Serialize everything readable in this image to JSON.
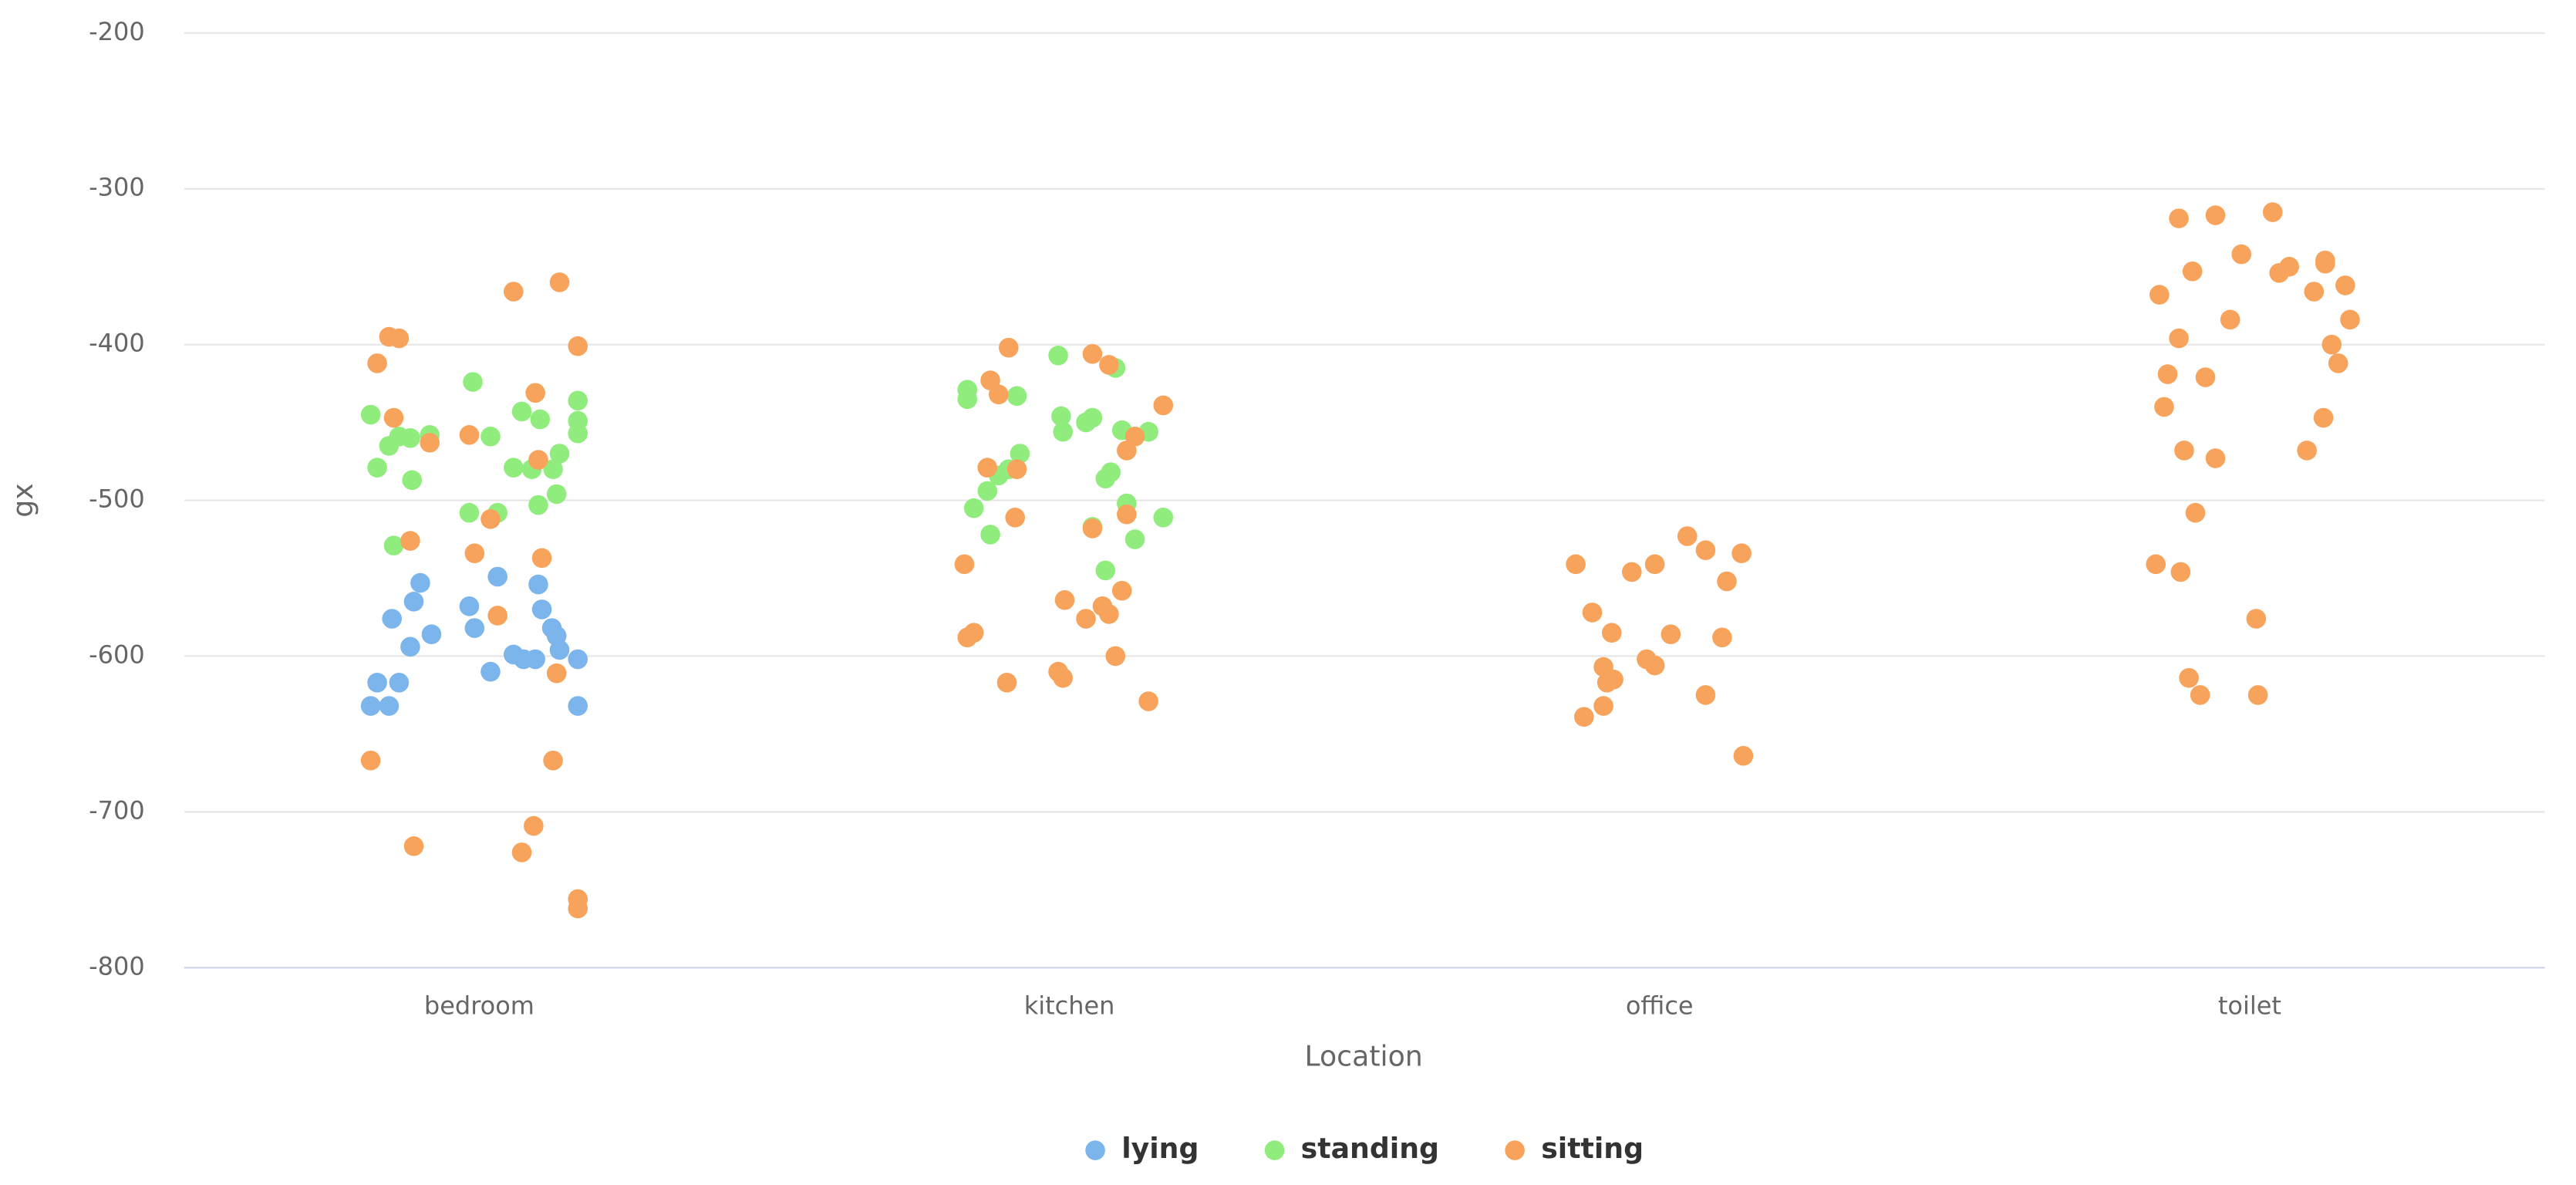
{
  "chart_data": {
    "type": "scatter",
    "x_label": "Location",
    "y_label": "gx",
    "categories": [
      "bedroom",
      "kitchen",
      "office",
      "toilet"
    ],
    "xlim": [
      -0.5,
      3.5
    ],
    "ylim": [
      -800,
      -200
    ],
    "yticks": [
      -800,
      -700,
      -600,
      -500,
      -400,
      -300,
      -200
    ],
    "grid": true,
    "legend": "bottom",
    "series": [
      {
        "name": "lying",
        "color": "#7cb5ec",
        "x": [
          -0.184,
          -0.153,
          -0.173,
          -0.136,
          -0.148,
          -0.111,
          -0.1,
          -0.117,
          -0.081,
          -0.017,
          -0.008,
          0.031,
          0.019,
          0.058,
          0.075,
          0.095,
          0.1,
          0.106,
          0.123,
          0.131,
          0.136,
          0.167,
          0.167
        ],
        "values": [
          -632,
          -632,
          -617,
          -617,
          -576,
          -565,
          -553,
          -594,
          -586,
          -568,
          -582,
          -549,
          -610,
          -599,
          -602,
          -602,
          -554,
          -570,
          -582,
          -587,
          -596,
          -602,
          -632
        ]
      },
      {
        "name": "standing",
        "color": "#90ed7d",
        "x": [
          -0.184,
          -0.173,
          -0.153,
          -0.136,
          -0.117,
          -0.114,
          -0.145,
          -0.084,
          -0.011,
          -0.017,
          0.019,
          0.031,
          0.072,
          0.058,
          0.089,
          0.103,
          0.1,
          0.125,
          0.131,
          0.136,
          0.167,
          0.167,
          0.167,
          0.827,
          0.827,
          0.911,
          0.838,
          0.861,
          0.866,
          0.88,
          0.897,
          0.916,
          0.981,
          0.986,
          0.989,
          1.028,
          1.039,
          1.061,
          1.07,
          1.078,
          1.089,
          1.097,
          1.111,
          1.134,
          1.159,
          1.061,
          1.039
        ],
        "values": [
          -445,
          -479,
          -465,
          -459,
          -460,
          -487,
          -529,
          -458,
          -424,
          -508,
          -459,
          -508,
          -443,
          -479,
          -480,
          -448,
          -503,
          -480,
          -496,
          -470,
          -436,
          -449,
          -457,
          -435,
          -429,
          -433,
          -505,
          -494,
          -522,
          -484,
          -480,
          -470,
          -407,
          -446,
          -456,
          -450,
          -447,
          -486,
          -482,
          -415,
          -455,
          -502,
          -525,
          -456,
          -511,
          -545,
          -517
        ]
      },
      {
        "name": "sitting",
        "color": "#f7a35c",
        "x": [
          -0.184,
          -0.173,
          -0.153,
          -0.136,
          -0.145,
          -0.117,
          -0.111,
          -0.084,
          -0.017,
          -0.008,
          0.019,
          0.031,
          0.058,
          0.072,
          0.092,
          0.095,
          0.1,
          0.106,
          0.125,
          0.131,
          0.136,
          0.167,
          0.167,
          0.167,
          0.822,
          0.827,
          0.838,
          0.897,
          0.866,
          0.88,
          0.861,
          0.911,
          0.908,
          0.894,
          0.981,
          0.989,
          0.992,
          1.028,
          1.039,
          1.039,
          1.056,
          1.067,
          1.067,
          1.089,
          1.078,
          1.097,
          1.097,
          1.111,
          1.134,
          1.159,
          1.858,
          1.872,
          1.886,
          1.905,
          1.905,
          1.911,
          1.919,
          1.922,
          1.953,
          1.978,
          1.992,
          1.992,
          2.019,
          2.047,
          2.078,
          2.078,
          2.106,
          2.114,
          2.139,
          2.142,
          2.841,
          2.847,
          2.855,
          2.861,
          2.88,
          2.883,
          2.889,
          2.88,
          2.903,
          2.908,
          2.897,
          2.916,
          2.925,
          2.942,
          2.942,
          2.967,
          2.986,
          3.011,
          3.014,
          3.039,
          3.05,
          3.067,
          3.097,
          3.109,
          3.125,
          3.128,
          3.128,
          3.139,
          3.15,
          3.162,
          3.17
        ],
        "values": [
          -667,
          -412,
          -395,
          -396,
          -447,
          -526,
          -722,
          -463,
          -458,
          -534,
          -512,
          -574,
          -366,
          -726,
          -709,
          -431,
          -474,
          -537,
          -667,
          -611,
          -360,
          -401,
          -756,
          -762,
          -541,
          -588,
          -585,
          -402,
          -423,
          -432,
          -479,
          -480,
          -511,
          -617,
          -610,
          -614,
          -564,
          -576,
          -518,
          -406,
          -568,
          -413,
          -573,
          -558,
          -600,
          -468,
          -509,
          -459,
          -629,
          -439,
          -541,
          -639,
          -572,
          -607,
          -632,
          -617,
          -585,
          -615,
          -546,
          -602,
          -541,
          -606,
          -586,
          -523,
          -532,
          -625,
          -588,
          -552,
          -534,
          -664,
          -541,
          -368,
          -440,
          -419,
          -396,
          -546,
          -468,
          -319,
          -353,
          -508,
          -614,
          -625,
          -421,
          -317,
          -473,
          -384,
          -342,
          -576,
          -625,
          -315,
          -354,
          -350,
          -468,
          -366,
          -447,
          -348,
          -346,
          -400,
          -412,
          -362,
          -384
        ]
      }
    ]
  }
}
